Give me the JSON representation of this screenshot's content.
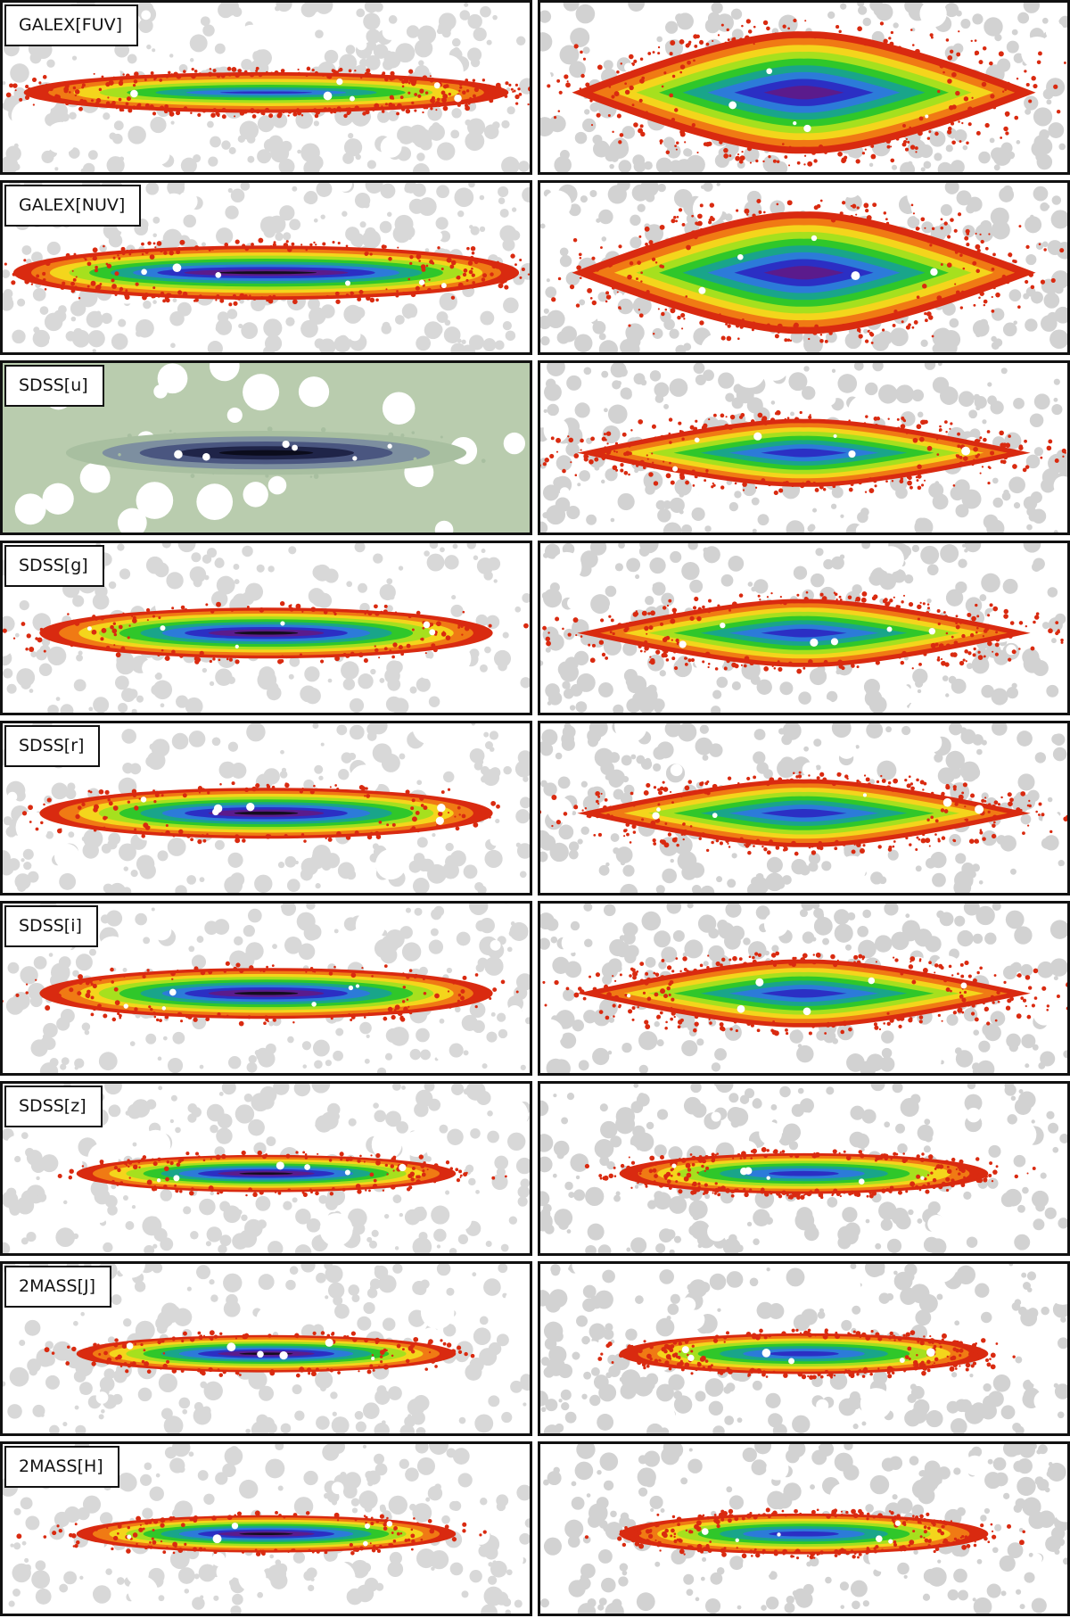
{
  "figure": {
    "rows": [
      {
        "band": "GALEX[FUV]",
        "left_style": "speckled"
      },
      {
        "band": "GALEX[NUV]",
        "left_style": "rich"
      },
      {
        "band": "SDSS[u]",
        "left_style": "mono"
      },
      {
        "band": "SDSS[g]",
        "left_style": "smooth"
      },
      {
        "band": "SDSS[r]",
        "left_style": "smooth"
      },
      {
        "band": "SDSS[i]",
        "left_style": "smooth"
      },
      {
        "band": "SDSS[z]",
        "left_style": "smooth"
      },
      {
        "band": "2MASS[J]",
        "left_style": "smooth"
      },
      {
        "band": "2MASS[H]",
        "left_style": "smooth"
      }
    ],
    "colormap": [
      "#d92a10",
      "#f07a14",
      "#f4d51c",
      "#a6e01e",
      "#2fc72a",
      "#19a58a",
      "#2c7bd9",
      "#2b2fc4",
      "#5b1b8c",
      "#140d1e"
    ],
    "mono_colormap": [
      "#a8bfa0",
      "#7d8fa0",
      "#4a5680",
      "#1f2448",
      "#0b0c1c"
    ],
    "background_mask": "#d2d2d2"
  }
}
